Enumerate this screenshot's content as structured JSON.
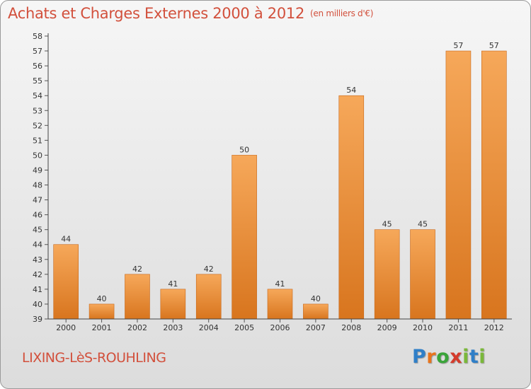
{
  "title": "Achats et Charges Externes 2000 à 2012",
  "subtitle": "(en milliers d'€)",
  "commune": "LIXING-LèS-ROUHLING",
  "brand": {
    "letters": [
      "P",
      "r",
      "o",
      "x",
      "i",
      "t",
      "i"
    ],
    "colors": [
      "#2f7fc8",
      "#e8741c",
      "#3aa43a",
      "#d43b2c",
      "#7ab83a",
      "#2f7fc8",
      "#7ab83a"
    ]
  },
  "colors": {
    "title": "#d2503c",
    "bar_light": "#f6a85a",
    "bar_dark": "#d8751e",
    "bar_stroke": "#c8681a"
  },
  "chart_data": {
    "type": "bar",
    "title": "Achats et Charges Externes 2000 à 2012",
    "subtitle": "(en milliers d'€)",
    "categories": [
      "2000",
      "2001",
      "2002",
      "2003",
      "2004",
      "2005",
      "2006",
      "2007",
      "2008",
      "2009",
      "2010",
      "2011",
      "2012"
    ],
    "values": [
      44,
      40,
      42,
      41,
      42,
      50,
      41,
      40,
      54,
      45,
      45,
      57,
      57
    ],
    "ylim": [
      39,
      58
    ],
    "yticks": [
      39,
      40,
      41,
      42,
      43,
      44,
      45,
      46,
      47,
      48,
      49,
      50,
      51,
      52,
      53,
      54,
      55,
      56,
      57,
      58
    ],
    "xlabel": "",
    "ylabel": "",
    "grid": false,
    "legend": "none"
  }
}
